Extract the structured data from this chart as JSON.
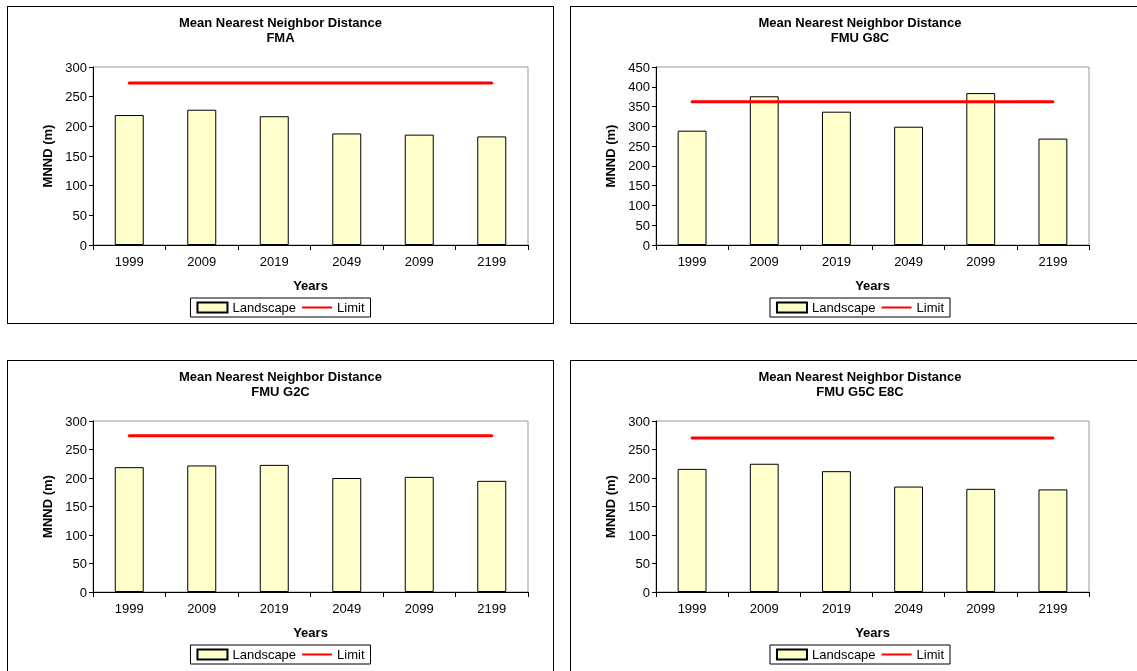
{
  "chart_data": [
    {
      "type": "bar",
      "title": "Mean Nearest Neighbor Distance",
      "subtitle": "FMA",
      "xlabel": "Years",
      "ylabel": "MNND (m)",
      "categories": [
        "1999",
        "2009",
        "2019",
        "2049",
        "2099",
        "2199"
      ],
      "series": [
        {
          "name": "Landscape",
          "color": "#ffffcc",
          "values": [
            219,
            228,
            217,
            188,
            186,
            183
          ]
        },
        {
          "name": "Limit",
          "type": "line",
          "color": "#ff0000",
          "values": [
            273,
            273,
            273,
            273,
            273,
            273
          ]
        }
      ],
      "ylim": [
        0,
        300
      ],
      "yticks": [
        0,
        50,
        100,
        150,
        200,
        250,
        300
      ],
      "grid": false,
      "legend": "bottom",
      "marker": "none",
      "line_style": "solid"
    },
    {
      "type": "bar",
      "title": "Mean Nearest Neighbor Distance",
      "subtitle": "FMU G8C",
      "xlabel": "Years",
      "ylabel": "MNND (m)",
      "categories": [
        "1999",
        "2009",
        "2019",
        "2049",
        "2099",
        "2199"
      ],
      "series": [
        {
          "name": "Landscape",
          "color": "#ffffcc",
          "values": [
            289,
            376,
            337,
            299,
            384,
            269
          ]
        },
        {
          "name": "Limit",
          "type": "line",
          "color": "#ff0000",
          "values": [
            362,
            362,
            362,
            362,
            362,
            362
          ]
        }
      ],
      "ylim": [
        0,
        450
      ],
      "yticks": [
        0,
        50,
        100,
        150,
        200,
        250,
        300,
        350,
        400,
        450
      ],
      "grid": false,
      "legend": "bottom",
      "marker": "none",
      "line_style": "solid"
    },
    {
      "type": "bar",
      "title": "Mean Nearest Neighbor Distance",
      "subtitle": "FMU G2C",
      "xlabel": "Years",
      "ylabel": "MNND (m)",
      "categories": [
        "1999",
        "2009",
        "2019",
        "2049",
        "2099",
        "2199"
      ],
      "series": [
        {
          "name": "Landscape",
          "color": "#ffffcc",
          "values": [
            219,
            222,
            223,
            200,
            202,
            195
          ]
        },
        {
          "name": "Limit",
          "type": "line",
          "color": "#ff0000",
          "values": [
            274,
            274,
            274,
            274,
            274,
            274
          ]
        }
      ],
      "ylim": [
        0,
        300
      ],
      "yticks": [
        0,
        50,
        100,
        150,
        200,
        250,
        300
      ],
      "grid": false,
      "legend": "bottom",
      "marker": "none",
      "line_style": "solid"
    },
    {
      "type": "bar",
      "title": "Mean Nearest Neighbor Distance",
      "subtitle": "FMU G5C E8C",
      "xlabel": "Years",
      "ylabel": "MNND (m)",
      "categories": [
        "1999",
        "2009",
        "2019",
        "2049",
        "2099",
        "2199"
      ],
      "series": [
        {
          "name": "Landscape",
          "color": "#ffffcc",
          "values": [
            216,
            225,
            212,
            185,
            181,
            180
          ]
        },
        {
          "name": "Limit",
          "type": "line",
          "color": "#ff0000",
          "values": [
            270,
            270,
            270,
            270,
            270,
            270
          ]
        }
      ],
      "ylim": [
        0,
        300
      ],
      "yticks": [
        0,
        50,
        100,
        150,
        200,
        250,
        300
      ],
      "grid": false,
      "legend": "bottom",
      "marker": "none",
      "line_style": "solid"
    }
  ]
}
